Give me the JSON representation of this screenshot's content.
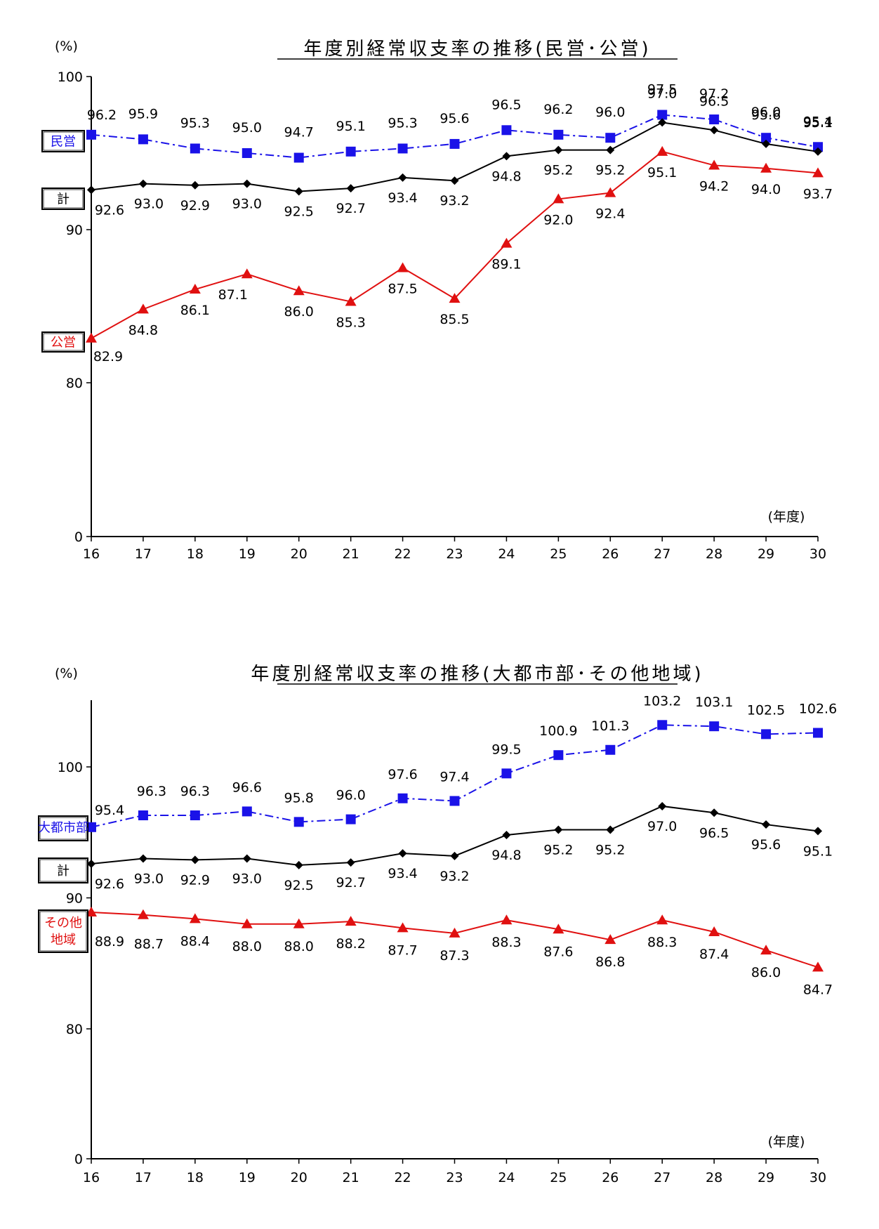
{
  "chart_data": [
    {
      "type": "line",
      "title": "年度別経常収支率の推移(民営･公営)",
      "ylabel": "(%)",
      "xlabel": "(年度)",
      "x": [
        "16",
        "17",
        "18",
        "19",
        "20",
        "21",
        "22",
        "23",
        "24",
        "25",
        "26",
        "27",
        "28",
        "29",
        "30"
      ],
      "yticks": [
        "0",
        "80",
        "90",
        "100"
      ],
      "axis_break": true,
      "series": [
        {
          "name": "民営",
          "color": "#1a12e8",
          "marker": "square",
          "dash": "dashdot",
          "values": [
            96.2,
            95.9,
            95.3,
            95.0,
            94.7,
            95.1,
            95.3,
            95.6,
            96.5,
            96.2,
            96.0,
            97.5,
            97.2,
            96.0,
            95.4
          ]
        },
        {
          "name": "計",
          "color": "#000000",
          "marker": "diamond",
          "dash": "solid",
          "values": [
            92.6,
            93.0,
            92.9,
            93.0,
            92.5,
            92.7,
            93.4,
            93.2,
            94.8,
            95.2,
            95.2,
            97.0,
            96.5,
            95.6,
            95.1
          ]
        },
        {
          "name": "公営",
          "color": "#e01010",
          "marker": "triangle",
          "dash": "solid",
          "values": [
            82.9,
            84.8,
            86.1,
            87.1,
            86.0,
            85.3,
            87.5,
            85.5,
            89.1,
            92.0,
            92.4,
            95.1,
            94.2,
            94.0,
            93.7
          ]
        }
      ]
    },
    {
      "type": "line",
      "title": "年度別経常収支率の推移(大都市部･その他地域)",
      "ylabel": "(%)",
      "xlabel": "(年度)",
      "x": [
        "16",
        "17",
        "18",
        "19",
        "20",
        "21",
        "22",
        "23",
        "24",
        "25",
        "26",
        "27",
        "28",
        "29",
        "30"
      ],
      "yticks": [
        "0",
        "80",
        "90",
        "100"
      ],
      "axis_break": true,
      "series": [
        {
          "name": "大都市部",
          "color": "#1a12e8",
          "marker": "square",
          "dash": "dashdot",
          "values": [
            95.4,
            96.3,
            96.3,
            96.6,
            95.8,
            96.0,
            97.6,
            97.4,
            99.5,
            100.9,
            101.3,
            103.2,
            103.1,
            102.5,
            102.6
          ]
        },
        {
          "name": "計",
          "color": "#000000",
          "marker": "diamond",
          "dash": "solid",
          "values": [
            92.6,
            93.0,
            92.9,
            93.0,
            92.5,
            92.7,
            93.4,
            93.2,
            94.8,
            95.2,
            95.2,
            97.0,
            96.5,
            95.6,
            95.1
          ]
        },
        {
          "name": "その他地域",
          "color": "#e01010",
          "marker": "triangle",
          "dash": "solid",
          "values": [
            88.9,
            88.7,
            88.4,
            88.0,
            88.0,
            88.2,
            87.7,
            87.3,
            88.3,
            87.6,
            86.8,
            88.3,
            87.4,
            86.0,
            84.7
          ]
        }
      ]
    }
  ]
}
